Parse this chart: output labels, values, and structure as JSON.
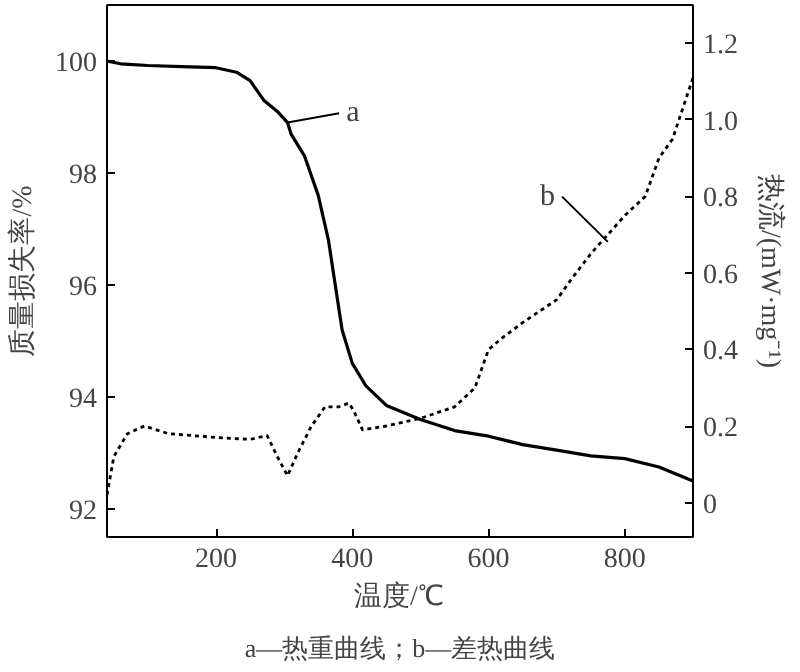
{
  "chart_data": {
    "type": "line",
    "xlabel": "温度/℃",
    "ylabel": "质量损失率/%",
    "y2label": "热流/(mW·mg⁻¹)",
    "xlim": [
      40,
      900
    ],
    "xticks": [
      200,
      400,
      600,
      800
    ],
    "ylim": [
      91.5,
      101
    ],
    "yticks": [
      92,
      94,
      96,
      98,
      100
    ],
    "y2lim": [
      -0.09,
      1.3
    ],
    "y2ticks": [
      0,
      0.2,
      0.4,
      0.6,
      0.8,
      {
        "value": 1.0,
        "label": "1.0"
      },
      1.2
    ],
    "grid": false,
    "series": [
      {
        "color": "#000000",
        "line_style": "solid",
        "x": [
          40,
          60,
          100,
          150,
          200,
          230,
          250,
          270,
          290,
          305,
          310,
          330,
          350,
          365,
          375,
          385,
          400,
          420,
          450,
          500,
          550,
          600,
          650,
          700,
          750,
          800,
          850,
          900
        ],
        "values": [
          100.0,
          99.95,
          99.92,
          99.9,
          99.88,
          99.8,
          99.65,
          99.3,
          99.1,
          98.9,
          98.7,
          98.3,
          97.6,
          96.8,
          96.0,
          95.2,
          94.6,
          94.2,
          93.85,
          93.6,
          93.4,
          93.3,
          93.15,
          93.05,
          92.95,
          92.9,
          92.75,
          92.5
        ]
      },
      {
        "color": "#000000",
        "line_style": "dotted",
        "axis": "y2",
        "x": [
          40,
          50,
          70,
          95,
          130,
          200,
          250,
          275,
          290,
          305,
          320,
          340,
          360,
          380,
          395,
          402,
          415,
          450,
          500,
          550,
          580,
          600,
          620,
          650,
          700,
          720,
          750,
          780,
          800,
          830,
          850,
          870,
          900
        ],
        "values": [
          0.02,
          0.12,
          0.18,
          0.2,
          0.18,
          0.17,
          0.165,
          0.175,
          0.12,
          0.07,
          0.13,
          0.2,
          0.25,
          0.25,
          0.26,
          0.24,
          0.19,
          0.2,
          0.22,
          0.25,
          0.3,
          0.4,
          0.43,
          0.47,
          0.53,
          0.58,
          0.65,
          0.71,
          0.75,
          0.8,
          0.9,
          0.95,
          1.11
        ]
      }
    ],
    "annotations": [
      {
        "text": "a",
        "x": 305,
        "y": 98.9
      },
      {
        "text": "b",
        "x": 775,
        "y": 96.77
      },
      "a—热重曲线；b—差热曲线"
    ]
  }
}
